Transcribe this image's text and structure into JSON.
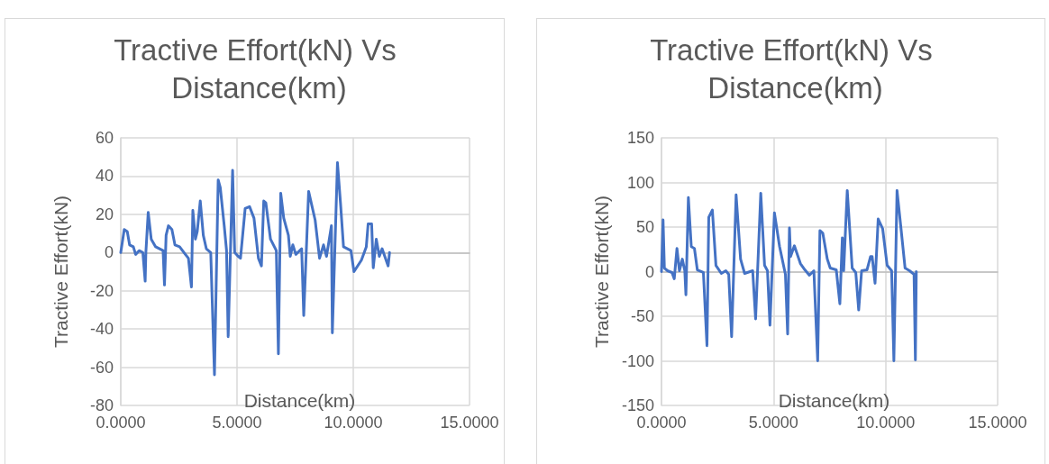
{
  "chart_data": [
    {
      "type": "line",
      "title": "Tractive Effort(kN) Vs Distance(km)",
      "xlabel": "Distance(km)",
      "ylabel": "Tractive Effort(kN)",
      "series": [
        {
          "color": "#4472c4",
          "x": [
            0,
            0.15,
            0.28,
            0.38,
            0.54,
            0.64,
            0.79,
            0.95,
            1.05,
            1.08,
            1.18,
            1.31,
            1.5,
            1.82,
            1.88,
            1.95,
            2.05,
            2.2,
            2.33,
            2.53,
            2.78,
            2.91,
            3.04,
            3.1,
            3.21,
            3.29,
            3.42,
            3.55,
            3.68,
            3.87,
            4.03,
            4.19,
            4.28,
            4.45,
            4.55,
            4.62,
            4.81,
            4.9,
            5.05,
            5.15,
            5.35,
            5.54,
            5.73,
            5.92,
            6.05,
            6.15,
            6.24,
            6.44,
            6.69,
            6.78,
            6.88,
            7.01,
            7.21,
            7.29,
            7.4,
            7.53,
            7.78,
            7.87,
            8.08,
            8.36,
            8.55,
            8.72,
            8.85,
            9.06,
            9.1,
            9.32,
            9.45,
            9.58,
            9.9,
            10.03,
            10.35,
            10.56,
            10.64,
            10.79,
            10.86,
            10.99,
            11.12,
            11.24,
            11.5,
            11.56
          ],
          "values": [
            0,
            12,
            11,
            4,
            3,
            -1,
            1,
            0,
            -15,
            0,
            21,
            7,
            3,
            1,
            -17,
            9,
            14,
            12,
            4,
            3,
            -1,
            -3,
            -18,
            22,
            7,
            11,
            27,
            9,
            2,
            0,
            -64,
            38,
            34,
            14,
            1,
            -44,
            43,
            0,
            -2,
            -3,
            23,
            24,
            18,
            -3,
            -7,
            27,
            26,
            7,
            1,
            -53,
            31,
            18,
            9,
            -2,
            4,
            -1,
            2,
            -33,
            32,
            17,
            -3,
            4,
            -2,
            14,
            -42,
            47,
            26,
            3,
            1,
            -10,
            -4,
            3,
            15,
            15,
            -8,
            7,
            -2,
            2,
            -7,
            0
          ]
        }
      ],
      "xlim": [
        0,
        15
      ],
      "xticks": [
        {
          "value": 0,
          "label": "0.0000"
        },
        {
          "value": 5,
          "label": "5.0000"
        },
        {
          "value": 10,
          "label": "10.0000"
        },
        {
          "value": 15,
          "label": "15.0000"
        }
      ],
      "ylim": [
        -80,
        60
      ],
      "yticks": [
        -80,
        -60,
        -40,
        -20,
        0,
        20,
        40,
        60
      ],
      "grid": true,
      "marker": "none",
      "line_style": "solid"
    },
    {
      "type": "line",
      "title": "Tractive Effort(kN) Vs Distance(km)",
      "xlabel": "Distance(km)",
      "ylabel": "Tractive Effort(kN)",
      "series": [
        {
          "color": "#4472c4",
          "x": [
            0,
            0.07,
            0.13,
            0.27,
            0.47,
            0.57,
            0.69,
            0.8,
            0.93,
            1.04,
            1.09,
            1.2,
            1.33,
            1.47,
            1.6,
            1.87,
            2.03,
            2.11,
            2.27,
            2.43,
            2.67,
            2.87,
            3.0,
            3.13,
            3.33,
            3.53,
            3.71,
            4.07,
            4.2,
            4.43,
            4.6,
            4.73,
            4.84,
            5.04,
            5.27,
            5.53,
            5.63,
            5.71,
            5.76,
            5.93,
            6.2,
            6.4,
            6.6,
            6.8,
            6.97,
            7.07,
            7.2,
            7.4,
            7.53,
            7.8,
            7.96,
            8.07,
            8.13,
            8.29,
            8.51,
            8.67,
            8.8,
            8.93,
            9.17,
            9.33,
            9.4,
            9.53,
            9.67,
            9.87,
            10.07,
            10.27,
            10.37,
            10.51,
            10.69,
            10.87,
            11.07,
            11.27,
            11.33,
            11.37
          ],
          "values": [
            0,
            58,
            4,
            1,
            -1,
            -8,
            26,
            1,
            14,
            1,
            -26,
            83,
            28,
            26,
            2,
            -1,
            -83,
            61,
            69,
            7,
            -2,
            1,
            -3,
            -73,
            86,
            14,
            -2,
            1,
            -53,
            88,
            7,
            1,
            -60,
            66,
            28,
            -3,
            -70,
            49,
            17,
            29,
            9,
            2,
            -4,
            1,
            -100,
            46,
            43,
            14,
            4,
            2,
            -36,
            38,
            1,
            91,
            4,
            -1,
            -43,
            1,
            2,
            17,
            17,
            -13,
            59,
            48,
            7,
            1,
            -100,
            91,
            48,
            4,
            1,
            -3,
            -99,
            0
          ]
        }
      ],
      "xlim": [
        0,
        15
      ],
      "xticks": [
        {
          "value": 0,
          "label": "0.0000"
        },
        {
          "value": 5,
          "label": "5.0000"
        },
        {
          "value": 10,
          "label": "10.0000"
        },
        {
          "value": 15,
          "label": "15.0000"
        }
      ],
      "ylim": [
        -150,
        150
      ],
      "yticks": [
        -150,
        -100,
        -50,
        0,
        50,
        100,
        150
      ],
      "grid": true,
      "marker": "none",
      "line_style": "solid"
    }
  ]
}
